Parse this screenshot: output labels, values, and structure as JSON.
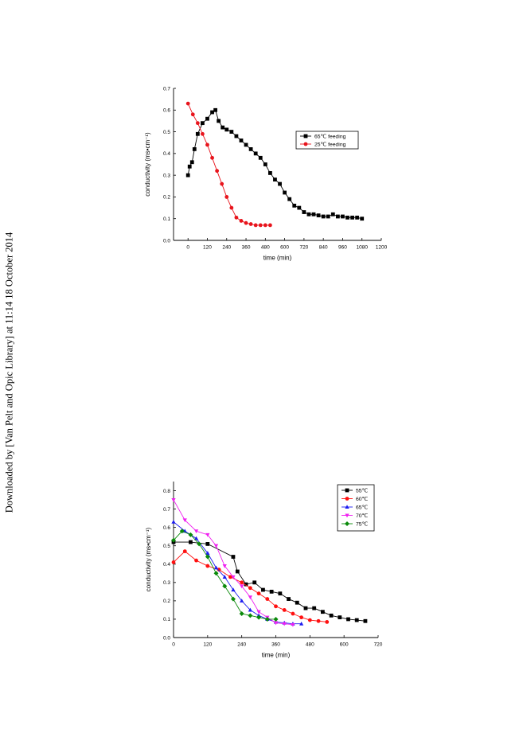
{
  "watermark": "Downloaded by [Van Pelt and Opic Library] at 11:14 18 October 2014",
  "chart_data": [
    {
      "type": "line",
      "xlabel": "time (min)",
      "ylabel": "conductivity (ms•cm⁻¹)",
      "xlim": [
        -90,
        1200
      ],
      "ylim": [
        0,
        0.7
      ],
      "xticks": [
        0,
        120,
        240,
        360,
        480,
        600,
        720,
        840,
        960,
        1080,
        1200
      ],
      "yticks": [
        0.0,
        0.1,
        0.2,
        0.3,
        0.4,
        0.5,
        0.6,
        0.7
      ],
      "grid": false,
      "legend": "top-right",
      "series": [
        {
          "name": "65℃ feeding",
          "color": "#000000",
          "marker": "square",
          "x": [
            0,
            10,
            25,
            40,
            60,
            90,
            120,
            150,
            170,
            190,
            215,
            240,
            270,
            300,
            330,
            360,
            390,
            420,
            450,
            480,
            510,
            540,
            570,
            600,
            630,
            660,
            690,
            720,
            750,
            780,
            810,
            840,
            870,
            900,
            930,
            960,
            990,
            1020,
            1050,
            1080
          ],
          "y": [
            0.3,
            0.34,
            0.36,
            0.42,
            0.49,
            0.54,
            0.56,
            0.59,
            0.6,
            0.55,
            0.52,
            0.51,
            0.5,
            0.48,
            0.46,
            0.44,
            0.42,
            0.4,
            0.38,
            0.35,
            0.31,
            0.28,
            0.26,
            0.22,
            0.19,
            0.16,
            0.15,
            0.13,
            0.12,
            0.12,
            0.115,
            0.11,
            0.11,
            0.12,
            0.11,
            0.11,
            0.105,
            0.105,
            0.105,
            0.1
          ]
        },
        {
          "name": "25℃ feeding",
          "color": "#e8141c",
          "marker": "circle",
          "x": [
            0,
            30,
            60,
            90,
            120,
            150,
            180,
            210,
            240,
            270,
            300,
            330,
            360,
            390,
            420,
            450,
            480,
            510
          ],
          "y": [
            0.63,
            0.58,
            0.54,
            0.49,
            0.44,
            0.38,
            0.32,
            0.26,
            0.2,
            0.15,
            0.105,
            0.09,
            0.08,
            0.075,
            0.07,
            0.07,
            0.07,
            0.07
          ]
        }
      ]
    },
    {
      "type": "line",
      "xlabel": "time (min)",
      "ylabel": "conductivity (ms•cm⁻¹)",
      "xlim": [
        0,
        720
      ],
      "ylim": [
        0,
        0.85
      ],
      "xticks": [
        0,
        120,
        240,
        360,
        480,
        600,
        720
      ],
      "yticks": [
        0.0,
        0.1,
        0.2,
        0.3,
        0.4,
        0.5,
        0.6,
        0.7,
        0.8
      ],
      "grid": false,
      "legend": "top-right",
      "series": [
        {
          "name": "55℃",
          "color": "#000000",
          "marker": "square",
          "x": [
            0,
            60,
            120,
            210,
            225,
            255,
            285,
            315,
            345,
            375,
            405,
            435,
            465,
            495,
            525,
            555,
            585,
            615,
            645,
            675
          ],
          "y": [
            0.52,
            0.52,
            0.51,
            0.44,
            0.36,
            0.29,
            0.3,
            0.26,
            0.25,
            0.24,
            0.21,
            0.19,
            0.16,
            0.16,
            0.14,
            0.12,
            0.11,
            0.1,
            0.095,
            0.09
          ]
        },
        {
          "name": "60℃",
          "color": "#ff1010",
          "marker": "circle",
          "x": [
            0,
            40,
            80,
            120,
            160,
            200,
            240,
            270,
            300,
            330,
            360,
            390,
            420,
            450,
            480,
            510,
            540
          ],
          "y": [
            0.41,
            0.47,
            0.42,
            0.39,
            0.37,
            0.33,
            0.3,
            0.27,
            0.24,
            0.21,
            0.17,
            0.15,
            0.13,
            0.11,
            0.095,
            0.09,
            0.085
          ]
        },
        {
          "name": "65℃",
          "color": "#1c1cf0",
          "marker": "triangle-up",
          "x": [
            0,
            40,
            80,
            120,
            150,
            180,
            210,
            240,
            270,
            300,
            330,
            360,
            390,
            420,
            450
          ],
          "y": [
            0.63,
            0.58,
            0.54,
            0.46,
            0.38,
            0.33,
            0.26,
            0.2,
            0.15,
            0.12,
            0.1,
            0.085,
            0.08,
            0.075,
            0.075
          ]
        },
        {
          "name": "70℃",
          "color": "#f020f0",
          "marker": "triangle-down",
          "x": [
            0,
            40,
            80,
            120,
            150,
            180,
            210,
            240,
            270,
            300,
            330,
            360,
            390,
            420
          ],
          "y": [
            0.75,
            0.64,
            0.58,
            0.56,
            0.5,
            0.39,
            0.33,
            0.28,
            0.22,
            0.14,
            0.11,
            0.08,
            0.075,
            0.07
          ]
        },
        {
          "name": "75℃",
          "color": "#0a8a0a",
          "marker": "diamond",
          "x": [
            0,
            30,
            60,
            90,
            120,
            150,
            180,
            210,
            240,
            270,
            300,
            330,
            360
          ],
          "y": [
            0.53,
            0.58,
            0.56,
            0.51,
            0.44,
            0.35,
            0.28,
            0.21,
            0.13,
            0.12,
            0.11,
            0.1,
            0.1
          ]
        }
      ]
    }
  ]
}
